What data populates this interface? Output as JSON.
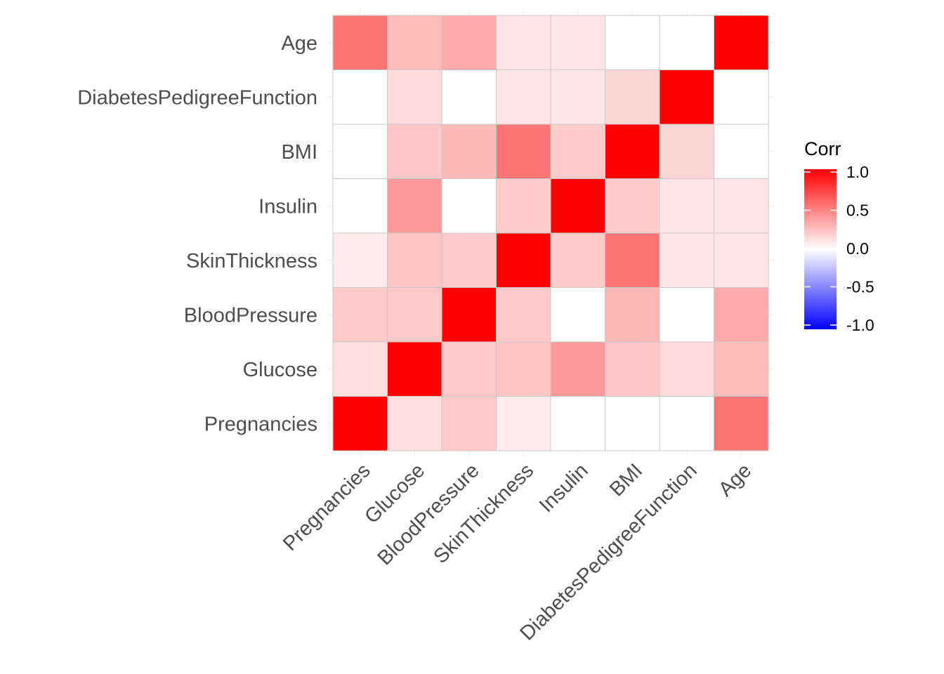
{
  "chart_data": {
    "type": "heatmap",
    "variables": [
      "Pregnancies",
      "Glucose",
      "BloodPressure",
      "SkinThickness",
      "Insulin",
      "BMI",
      "DiabetesPedigreeFunction",
      "Age"
    ],
    "values": [
      [
        1.0,
        0.13,
        0.21,
        0.08,
        0.0,
        0.0,
        0.0,
        0.54
      ],
      [
        0.13,
        1.0,
        0.21,
        0.23,
        0.4,
        0.22,
        0.14,
        0.27
      ],
      [
        0.21,
        0.21,
        1.0,
        0.21,
        0.0,
        0.28,
        0.0,
        0.33
      ],
      [
        0.08,
        0.23,
        0.21,
        1.0,
        0.2,
        0.54,
        0.1,
        0.1
      ],
      [
        0.0,
        0.4,
        0.0,
        0.2,
        1.0,
        0.2,
        0.1,
        0.1
      ],
      [
        0.0,
        0.22,
        0.28,
        0.54,
        0.2,
        1.0,
        0.16,
        0.0
      ],
      [
        0.0,
        0.14,
        0.0,
        0.1,
        0.1,
        0.16,
        1.0,
        0.0
      ],
      [
        0.54,
        0.27,
        0.33,
        0.1,
        0.1,
        0.0,
        0.0,
        1.0
      ]
    ],
    "fill_range": [
      -1,
      1
    ],
    "colors": {
      "low": "#0000FF",
      "mid": "#FFFFFF",
      "high": "#FF0000"
    },
    "legend": {
      "title": "Corr",
      "ticks": [
        "1.0",
        "0.5",
        "0.0",
        "-0.5",
        "-1.0"
      ],
      "placement": "right"
    }
  }
}
